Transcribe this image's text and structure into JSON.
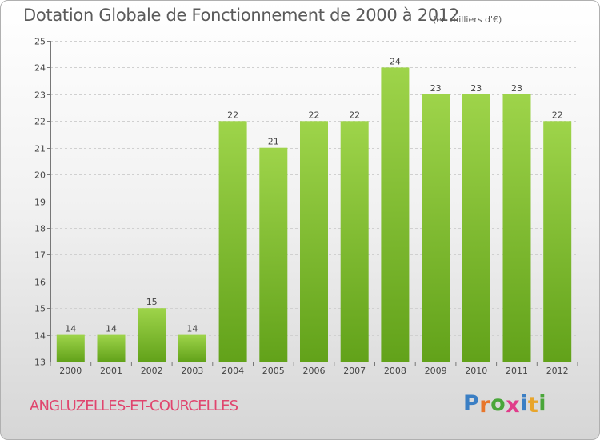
{
  "title": "Dotation Globale de Fonctionnement de 2000 à 2012",
  "subtitle": "(en milliers d'€)",
  "commune": "ANGLUZELLES-ET-COURCELLES",
  "logo": {
    "text": "Proxiti",
    "letters": [
      {
        "char": "P",
        "color": "#3b7fc4"
      },
      {
        "char": "r",
        "color": "#e8762b"
      },
      {
        "char": "o",
        "color": "#4aa63a"
      },
      {
        "char": "x",
        "color": "#e03c8a"
      },
      {
        "char": "i",
        "color": "#3b7fc4"
      },
      {
        "char": "t",
        "color": "#e8a52b"
      },
      {
        "char": "i",
        "color": "#4aa63a"
      }
    ]
  },
  "colors": {
    "bar_top": "#9ed44a",
    "bar_bottom": "#62a21a",
    "grid": "#d0d0d0",
    "axis": "#777777"
  },
  "chart_data": {
    "type": "bar",
    "title": "Dotation Globale de Fonctionnement de 2000 à 2012",
    "subtitle": "(en milliers d'€)",
    "categories": [
      "2000",
      "2001",
      "2002",
      "2003",
      "2004",
      "2005",
      "2006",
      "2007",
      "2008",
      "2009",
      "2010",
      "2011",
      "2012"
    ],
    "values": [
      14,
      14,
      15,
      14,
      22,
      21,
      22,
      22,
      24,
      23,
      23,
      23,
      22
    ],
    "xlabel": "",
    "ylabel": "",
    "ylim": [
      13,
      25
    ],
    "yticks": [
      13,
      14,
      15,
      16,
      17,
      18,
      19,
      20,
      21,
      22,
      23,
      24,
      25
    ],
    "grid": true,
    "legend": "none"
  }
}
